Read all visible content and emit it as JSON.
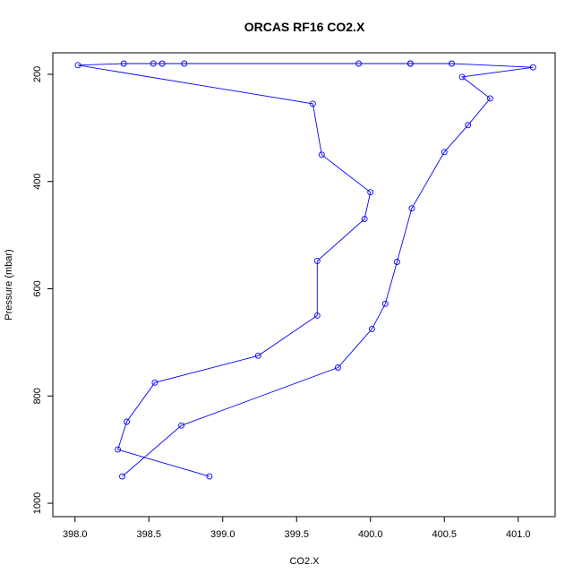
{
  "chart_data": {
    "type": "line",
    "title": "ORCAS RF16 CO2.X",
    "xlabel": "CO2.X",
    "ylabel": "Pressure (mbar)",
    "xlim": [
      397.85,
      401.25
    ],
    "ylim": [
      1025,
      160
    ],
    "y_reversed": true,
    "x_ticks": [
      "398.0",
      "398.5",
      "399.0",
      "399.5",
      "400.0",
      "400.5",
      "401.0"
    ],
    "y_ticks": [
      "200",
      "400",
      "600",
      "800",
      "1000"
    ],
    "grid": false,
    "legend": "none",
    "series": [
      {
        "color": "#0000ff",
        "marker": "open-circle",
        "x": [
          398.91,
          398.29,
          398.35,
          398.54,
          399.24,
          399.64,
          399.64,
          399.96,
          400.0,
          399.67,
          399.61,
          398.02,
          398.33,
          398.53,
          398.59,
          398.74,
          399.92,
          400.27,
          400.27,
          400.55,
          401.1,
          400.62,
          400.81,
          400.66,
          400.5,
          400.28,
          400.18,
          400.1,
          400.01,
          399.78,
          398.72,
          398.32
        ],
        "y": [
          950,
          900,
          848,
          775,
          725,
          650,
          548,
          470,
          420,
          350,
          255,
          183,
          180,
          180,
          180,
          180,
          180,
          180,
          180,
          180,
          187,
          205,
          245,
          295,
          345,
          450,
          550,
          628,
          675,
          747,
          855,
          950
        ]
      }
    ]
  }
}
